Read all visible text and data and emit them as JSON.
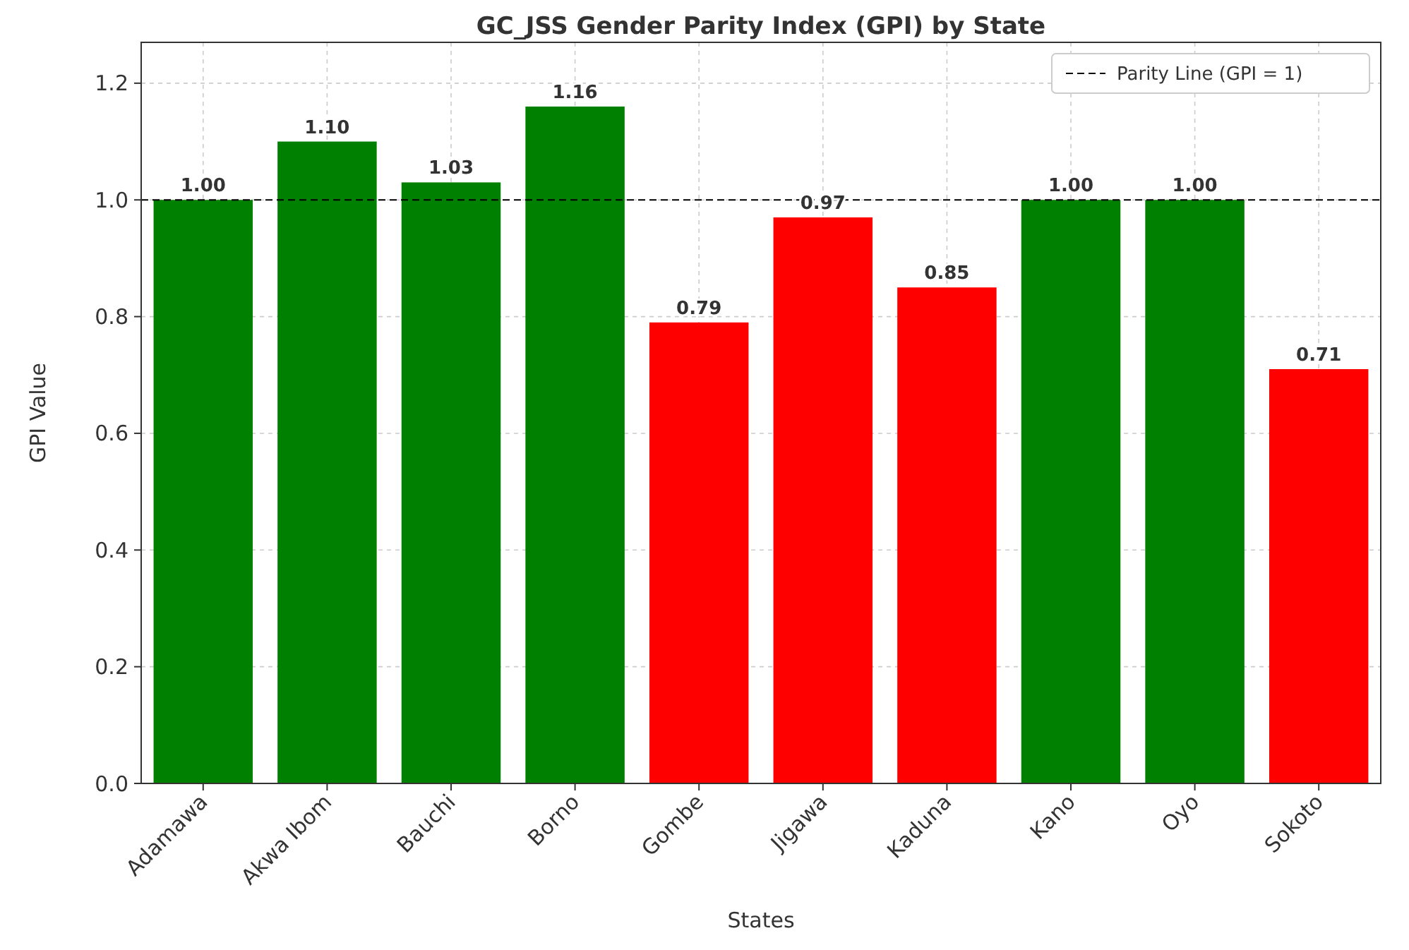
{
  "chart_data": {
    "type": "bar",
    "title": "GC_JSS Gender Parity Index (GPI) by State",
    "xlabel": "States",
    "ylabel": "GPI Value",
    "categories": [
      "Adamawa",
      "Akwa Ibom",
      "Bauchi",
      "Borno",
      "Gombe",
      "Jigawa",
      "Kaduna",
      "Kano",
      "Oyo",
      "Sokoto"
    ],
    "values": [
      1.0,
      1.1,
      1.03,
      1.16,
      0.79,
      0.97,
      0.85,
      1.0,
      1.0,
      0.71
    ],
    "colors": [
      "#008000",
      "#008000",
      "#008000",
      "#008000",
      "#ff0000",
      "#ff0000",
      "#ff0000",
      "#008000",
      "#008000",
      "#ff0000"
    ],
    "value_labels": [
      "1.00",
      "1.10",
      "1.03",
      "1.16",
      "0.79",
      "0.97",
      "0.85",
      "1.00",
      "1.00",
      "0.71"
    ],
    "ylim": [
      0,
      1.27
    ],
    "yticks": [
      {
        "value": 0,
        "label": "0.0"
      },
      {
        "value": 0.2,
        "label": "0.2"
      },
      {
        "value": 0.4,
        "label": "0.4"
      },
      {
        "value": 0.6,
        "label": "0.6"
      },
      {
        "value": 0.8,
        "label": "0.8"
      },
      {
        "value": 1,
        "label": "1.0"
      },
      {
        "value": 1.2,
        "label": "1.2"
      }
    ],
    "grid": true,
    "legend": "top right",
    "ref_lines": [
      {
        "axis": "y",
        "value": 1,
        "label": "Parity Line (GPI = 1)",
        "color": "#000000",
        "line_style": "dashed"
      }
    ]
  }
}
